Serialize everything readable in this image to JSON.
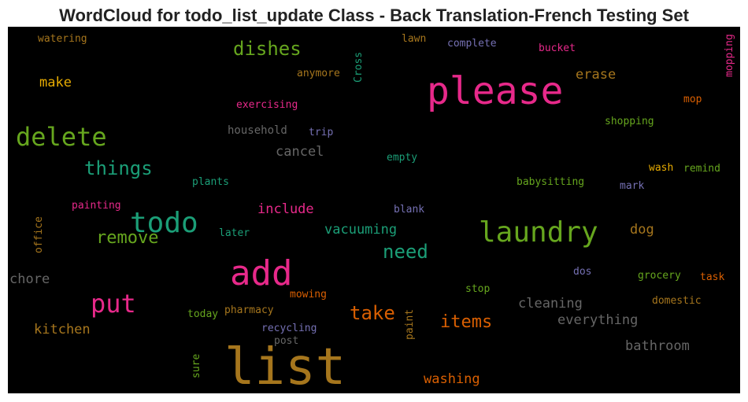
{
  "chart_data": {
    "type": "wordcloud",
    "title": "WordCloud for todo_list_update Class - Back Translation-French Testing Set",
    "background": "#000000",
    "words": [
      {
        "text": "watering",
        "color": "#a6761d"
      },
      {
        "text": "dishes",
        "color": "#66a61e"
      },
      {
        "text": "Cross",
        "color": "#1b9e77"
      },
      {
        "text": "lawn",
        "color": "#a6761d"
      },
      {
        "text": "complete",
        "color": "#7570b3"
      },
      {
        "text": "bucket",
        "color": "#e7298a"
      },
      {
        "text": "mopping",
        "color": "#e7298a"
      },
      {
        "text": "please",
        "color": "#e7298a"
      },
      {
        "text": "anymore",
        "color": "#a6761d"
      },
      {
        "text": "make",
        "color": "#e6ab02"
      },
      {
        "text": "erase",
        "color": "#a6761d"
      },
      {
        "text": "mop",
        "color": "#d95f02"
      },
      {
        "text": "exercising",
        "color": "#e7298a"
      },
      {
        "text": "delete",
        "color": "#66a61e"
      },
      {
        "text": "household",
        "color": "#666666"
      },
      {
        "text": "trip",
        "color": "#7570b3"
      },
      {
        "text": "shopping",
        "color": "#66a61e"
      },
      {
        "text": "cancel",
        "color": "#666666"
      },
      {
        "text": "things",
        "color": "#1b9e77"
      },
      {
        "text": "empty",
        "color": "#1b9e77"
      },
      {
        "text": "wash",
        "color": "#e6ab02"
      },
      {
        "text": "remind",
        "color": "#66a61e"
      },
      {
        "text": "plants",
        "color": "#1b9e77"
      },
      {
        "text": "babysitting",
        "color": "#66a61e"
      },
      {
        "text": "mark",
        "color": "#7570b3"
      },
      {
        "text": "painting",
        "color": "#e7298a"
      },
      {
        "text": "todo",
        "color": "#1b9e77"
      },
      {
        "text": "include",
        "color": "#e7298a"
      },
      {
        "text": "blank",
        "color": "#7570b3"
      },
      {
        "text": "office",
        "color": "#a6761d"
      },
      {
        "text": "laundry",
        "color": "#66a61e"
      },
      {
        "text": "remove",
        "color": "#66a61e"
      },
      {
        "text": "later",
        "color": "#1b9e77"
      },
      {
        "text": "vacuuming",
        "color": "#1b9e77"
      },
      {
        "text": "dog",
        "color": "#a6761d"
      },
      {
        "text": "need",
        "color": "#1b9e77"
      },
      {
        "text": "add",
        "color": "#e7298a"
      },
      {
        "text": "chore",
        "color": "#666666"
      },
      {
        "text": "dos",
        "color": "#7570b3"
      },
      {
        "text": "grocery",
        "color": "#66a61e"
      },
      {
        "text": "task",
        "color": "#d95f02"
      },
      {
        "text": "put",
        "color": "#e7298a"
      },
      {
        "text": "stop",
        "color": "#66a61e"
      },
      {
        "text": "mowing",
        "color": "#d95f02"
      },
      {
        "text": "cleaning",
        "color": "#666666"
      },
      {
        "text": "domestic",
        "color": "#a6761d"
      },
      {
        "text": "pharmacy",
        "color": "#a6761d"
      },
      {
        "text": "today",
        "color": "#66a61e"
      },
      {
        "text": "take",
        "color": "#d95f02"
      },
      {
        "text": "items",
        "color": "#d95f02"
      },
      {
        "text": "everything",
        "color": "#666666"
      },
      {
        "text": "kitchen",
        "color": "#a6761d"
      },
      {
        "text": "recycling",
        "color": "#7570b3"
      },
      {
        "text": "paint",
        "color": "#a6761d"
      },
      {
        "text": "post",
        "color": "#666666"
      },
      {
        "text": "bathroom",
        "color": "#666666"
      },
      {
        "text": "list",
        "color": "#a6761d"
      },
      {
        "text": "sure",
        "color": "#66a61e"
      },
      {
        "text": "washing",
        "color": "#d95f02"
      }
    ]
  }
}
